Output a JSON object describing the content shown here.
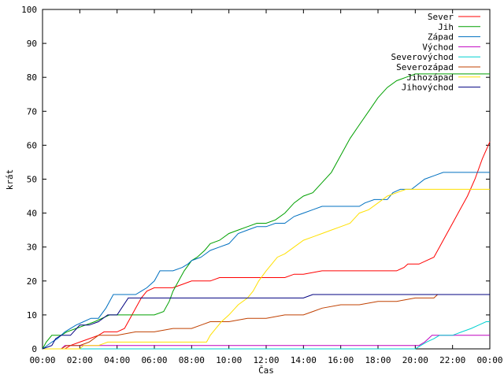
{
  "chart_data": {
    "type": "line",
    "title": "",
    "xlabel": "Čas",
    "ylabel": "krát",
    "xlim": [
      0,
      24
    ],
    "ylim": [
      0,
      100
    ],
    "x_ticks": [
      0,
      2,
      4,
      6,
      8,
      10,
      12,
      14,
      16,
      18,
      20,
      22,
      24
    ],
    "x_tick_labels": [
      "00:00",
      "02:00",
      "04:00",
      "06:00",
      "08:00",
      "10:00",
      "12:00",
      "14:00",
      "16:00",
      "18:00",
      "20:00",
      "22:00",
      "00:00"
    ],
    "y_ticks": [
      0,
      10,
      20,
      30,
      40,
      50,
      60,
      70,
      80,
      90,
      100
    ],
    "y_tick_labels": [
      "0",
      "10",
      "20",
      "30",
      "40",
      "50",
      "60",
      "70",
      "80",
      "90",
      "100"
    ],
    "grid": false,
    "legend_position": "top-right",
    "series": [
      {
        "name": "Sever",
        "color": "#ff0000",
        "points": [
          [
            0,
            0
          ],
          [
            1.2,
            0
          ],
          [
            1.5,
            1
          ],
          [
            2.0,
            2
          ],
          [
            2.5,
            3
          ],
          [
            3.0,
            4
          ],
          [
            3.3,
            5
          ],
          [
            4.0,
            5
          ],
          [
            4.4,
            6
          ],
          [
            4.7,
            9
          ],
          [
            5.0,
            12
          ],
          [
            5.3,
            15
          ],
          [
            5.6,
            17
          ],
          [
            6.0,
            18
          ],
          [
            7.0,
            18
          ],
          [
            7.5,
            19
          ],
          [
            8.0,
            20
          ],
          [
            9.0,
            20
          ],
          [
            9.5,
            21
          ],
          [
            10.0,
            21
          ],
          [
            12.0,
            21
          ],
          [
            13.0,
            21
          ],
          [
            13.5,
            22
          ],
          [
            14.0,
            22
          ],
          [
            15.0,
            23
          ],
          [
            17.0,
            23
          ],
          [
            19.0,
            23
          ],
          [
            19.4,
            24
          ],
          [
            19.6,
            25
          ],
          [
            20.2,
            25
          ],
          [
            20.6,
            26
          ],
          [
            21.0,
            27
          ],
          [
            21.3,
            30
          ],
          [
            21.6,
            33
          ],
          [
            22.0,
            37
          ],
          [
            22.4,
            41
          ],
          [
            22.8,
            45
          ],
          [
            23.2,
            50
          ],
          [
            23.6,
            56
          ],
          [
            24.0,
            61
          ]
        ]
      },
      {
        "name": "Jih",
        "color": "#00a000",
        "points": [
          [
            0,
            0
          ],
          [
            0.2,
            2
          ],
          [
            0.5,
            4
          ],
          [
            1.0,
            4
          ],
          [
            1.3,
            5
          ],
          [
            1.8,
            6
          ],
          [
            2.3,
            7
          ],
          [
            2.8,
            8
          ],
          [
            3.2,
            9
          ],
          [
            3.6,
            10
          ],
          [
            4.0,
            10
          ],
          [
            5.0,
            10
          ],
          [
            6.0,
            10
          ],
          [
            6.5,
            11
          ],
          [
            6.8,
            14
          ],
          [
            7.0,
            17
          ],
          [
            7.3,
            20
          ],
          [
            7.6,
            23
          ],
          [
            8.0,
            26
          ],
          [
            8.3,
            27
          ],
          [
            8.7,
            29
          ],
          [
            9.0,
            31
          ],
          [
            9.5,
            32
          ],
          [
            10.0,
            34
          ],
          [
            10.5,
            35
          ],
          [
            11.0,
            36
          ],
          [
            11.5,
            37
          ],
          [
            12.0,
            37
          ],
          [
            12.5,
            38
          ],
          [
            13.0,
            40
          ],
          [
            13.5,
            43
          ],
          [
            14.0,
            45
          ],
          [
            14.5,
            46
          ],
          [
            15.0,
            49
          ],
          [
            15.5,
            52
          ],
          [
            16.0,
            57
          ],
          [
            16.5,
            62
          ],
          [
            17.0,
            66
          ],
          [
            17.5,
            70
          ],
          [
            18.0,
            74
          ],
          [
            18.5,
            77
          ],
          [
            19.0,
            79
          ],
          [
            19.5,
            80
          ],
          [
            20.0,
            81
          ],
          [
            21.0,
            81
          ],
          [
            22.0,
            81
          ],
          [
            23.0,
            81
          ],
          [
            24.0,
            81
          ]
        ]
      },
      {
        "name": "Západ",
        "color": "#0070c0",
        "points": [
          [
            0,
            0
          ],
          [
            0.5,
            2
          ],
          [
            0.8,
            3
          ],
          [
            1.2,
            5
          ],
          [
            1.8,
            7
          ],
          [
            2.2,
            8
          ],
          [
            2.6,
            9
          ],
          [
            3.0,
            9
          ],
          [
            3.4,
            12
          ],
          [
            3.8,
            16
          ],
          [
            4.5,
            16
          ],
          [
            5.0,
            16
          ],
          [
            5.3,
            17
          ],
          [
            5.6,
            18
          ],
          [
            6.0,
            20
          ],
          [
            6.3,
            23
          ],
          [
            7.0,
            23
          ],
          [
            7.5,
            24
          ],
          [
            7.8,
            25
          ],
          [
            8.0,
            26
          ],
          [
            8.5,
            27
          ],
          [
            9.0,
            29
          ],
          [
            9.5,
            30
          ],
          [
            10.0,
            31
          ],
          [
            10.5,
            34
          ],
          [
            11.0,
            35
          ],
          [
            11.5,
            36
          ],
          [
            12.0,
            36
          ],
          [
            12.5,
            37
          ],
          [
            13.0,
            37
          ],
          [
            13.5,
            39
          ],
          [
            14.0,
            40
          ],
          [
            14.5,
            41
          ],
          [
            15.0,
            42
          ],
          [
            16.0,
            42
          ],
          [
            17.0,
            42
          ],
          [
            17.3,
            43
          ],
          [
            17.8,
            44
          ],
          [
            18.5,
            44
          ],
          [
            18.8,
            46
          ],
          [
            19.2,
            47
          ],
          [
            19.8,
            47
          ],
          [
            20.5,
            50
          ],
          [
            21.0,
            51
          ],
          [
            21.5,
            52
          ],
          [
            22.0,
            52
          ],
          [
            23.0,
            52
          ],
          [
            24.0,
            52
          ]
        ]
      },
      {
        "name": "Východ",
        "color": "#c000c0",
        "points": [
          [
            0,
            0
          ],
          [
            1.0,
            0
          ],
          [
            1.2,
            1
          ],
          [
            2.0,
            1
          ],
          [
            5.0,
            1
          ],
          [
            10.0,
            1
          ],
          [
            15.0,
            1
          ],
          [
            19.0,
            1
          ],
          [
            20.2,
            1
          ],
          [
            20.5,
            2
          ],
          [
            20.7,
            3
          ],
          [
            20.9,
            4
          ],
          [
            22.0,
            4
          ],
          [
            23.0,
            4
          ],
          [
            24.0,
            4
          ]
        ]
      },
      {
        "name": "Severovýchod",
        "color": "#00d0d0",
        "points": [
          [
            0,
            0
          ],
          [
            20.0,
            0
          ],
          [
            20.3,
            1
          ],
          [
            20.6,
            2
          ],
          [
            21.0,
            3
          ],
          [
            21.3,
            4
          ],
          [
            22.0,
            4
          ],
          [
            22.5,
            5
          ],
          [
            23.0,
            6
          ],
          [
            23.4,
            7
          ],
          [
            23.8,
            8
          ],
          [
            24.0,
            8
          ]
        ]
      },
      {
        "name": "Severozápad",
        "color": "#c04000",
        "points": [
          [
            0,
            0
          ],
          [
            1.0,
            0
          ],
          [
            1.3,
            1
          ],
          [
            2.0,
            1
          ],
          [
            2.5,
            2
          ],
          [
            3.0,
            4
          ],
          [
            4.0,
            4
          ],
          [
            5.0,
            5
          ],
          [
            6.0,
            5
          ],
          [
            7.0,
            6
          ],
          [
            8.0,
            6
          ],
          [
            8.5,
            7
          ],
          [
            9.0,
            8
          ],
          [
            10.0,
            8
          ],
          [
            11.0,
            9
          ],
          [
            12.0,
            9
          ],
          [
            13.0,
            10
          ],
          [
            14.0,
            10
          ],
          [
            14.5,
            11
          ],
          [
            15.0,
            12
          ],
          [
            16.0,
            13
          ],
          [
            17.0,
            13
          ],
          [
            18.0,
            14
          ],
          [
            19.0,
            14
          ],
          [
            20.0,
            15
          ],
          [
            21.0,
            15
          ],
          [
            21.2,
            16
          ],
          [
            22.0,
            16
          ],
          [
            23.0,
            16
          ],
          [
            24.0,
            16
          ]
        ]
      },
      {
        "name": "Jihozápad",
        "color": "#ffe000",
        "points": [
          [
            0,
            0
          ],
          [
            2.0,
            0
          ],
          [
            2.2,
            1
          ],
          [
            3.0,
            1
          ],
          [
            3.5,
            2
          ],
          [
            5.0,
            2
          ],
          [
            7.0,
            2
          ],
          [
            8.0,
            2
          ],
          [
            8.8,
            2
          ],
          [
            9.0,
            4
          ],
          [
            9.3,
            6
          ],
          [
            9.6,
            8
          ],
          [
            10.0,
            10
          ],
          [
            10.5,
            13
          ],
          [
            11.0,
            15
          ],
          [
            11.3,
            17
          ],
          [
            11.6,
            20
          ],
          [
            12.0,
            23
          ],
          [
            12.3,
            25
          ],
          [
            12.6,
            27
          ],
          [
            13.0,
            28
          ],
          [
            13.5,
            30
          ],
          [
            14.0,
            32
          ],
          [
            14.5,
            33
          ],
          [
            15.0,
            34
          ],
          [
            15.5,
            35
          ],
          [
            16.0,
            36
          ],
          [
            16.5,
            37
          ],
          [
            17.0,
            40
          ],
          [
            17.5,
            41
          ],
          [
            18.0,
            43
          ],
          [
            18.5,
            45
          ],
          [
            19.0,
            46
          ],
          [
            19.5,
            47
          ],
          [
            20.0,
            47
          ],
          [
            21.0,
            47
          ],
          [
            22.0,
            47
          ],
          [
            23.0,
            47
          ],
          [
            24.0,
            47
          ]
        ]
      },
      {
        "name": "Jihovýchod",
        "color": "#000080",
        "points": [
          [
            0,
            0
          ],
          [
            0.5,
            1
          ],
          [
            0.7,
            3
          ],
          [
            1.0,
            4
          ],
          [
            1.5,
            4
          ],
          [
            2.0,
            7
          ],
          [
            2.5,
            7
          ],
          [
            3.0,
            8
          ],
          [
            3.5,
            10
          ],
          [
            4.0,
            10
          ],
          [
            4.6,
            15
          ],
          [
            5.0,
            15
          ],
          [
            6.0,
            15
          ],
          [
            10.0,
            15
          ],
          [
            14.0,
            15
          ],
          [
            14.5,
            16
          ],
          [
            15.0,
            16
          ],
          [
            20.0,
            16
          ],
          [
            24.0,
            16
          ]
        ]
      }
    ]
  }
}
